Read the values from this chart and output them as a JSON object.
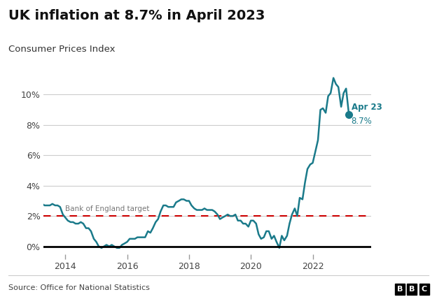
{
  "title": "UK inflation at 8.7% in April 2023",
  "subtitle": "Consumer Prices Index",
  "source": "Source: Office for National Statistics",
  "line_color": "#1a7a8a",
  "target_line_color": "#cc0000",
  "target_value": 2.0,
  "target_label": "Bank of England target",
  "background_color": "#ffffff",
  "ylabel_ticks": [
    "0%",
    "2%",
    "4%",
    "6%",
    "8%",
    "10%"
  ],
  "ytick_values": [
    0,
    2,
    4,
    6,
    8,
    10
  ],
  "ylim": [
    -0.5,
    12.0
  ],
  "xlim_start": 2013.3,
  "xlim_end": 2023.9,
  "data": [
    [
      2013.25,
      2.8
    ],
    [
      2013.33,
      2.7
    ],
    [
      2013.42,
      2.7
    ],
    [
      2013.5,
      2.7
    ],
    [
      2013.58,
      2.8
    ],
    [
      2013.67,
      2.7
    ],
    [
      2013.75,
      2.7
    ],
    [
      2013.83,
      2.6
    ],
    [
      2013.92,
      2.1
    ],
    [
      2014.0,
      1.9
    ],
    [
      2014.08,
      1.7
    ],
    [
      2014.17,
      1.6
    ],
    [
      2014.25,
      1.6
    ],
    [
      2014.33,
      1.5
    ],
    [
      2014.42,
      1.5
    ],
    [
      2014.5,
      1.6
    ],
    [
      2014.58,
      1.5
    ],
    [
      2014.67,
      1.2
    ],
    [
      2014.75,
      1.2
    ],
    [
      2014.83,
      1.0
    ],
    [
      2014.92,
      0.5
    ],
    [
      2015.0,
      0.3
    ],
    [
      2015.08,
      0.0
    ],
    [
      2015.17,
      -0.1
    ],
    [
      2015.25,
      0.0
    ],
    [
      2015.33,
      0.1
    ],
    [
      2015.42,
      0.0
    ],
    [
      2015.5,
      0.1
    ],
    [
      2015.58,
      0.0
    ],
    [
      2015.67,
      -0.1
    ],
    [
      2015.75,
      -0.1
    ],
    [
      2015.83,
      0.1
    ],
    [
      2015.92,
      0.2
    ],
    [
      2016.0,
      0.3
    ],
    [
      2016.08,
      0.5
    ],
    [
      2016.17,
      0.5
    ],
    [
      2016.25,
      0.5
    ],
    [
      2016.33,
      0.6
    ],
    [
      2016.42,
      0.6
    ],
    [
      2016.5,
      0.6
    ],
    [
      2016.58,
      0.6
    ],
    [
      2016.67,
      1.0
    ],
    [
      2016.75,
      0.9
    ],
    [
      2016.83,
      1.2
    ],
    [
      2016.92,
      1.6
    ],
    [
      2017.0,
      1.8
    ],
    [
      2017.08,
      2.3
    ],
    [
      2017.17,
      2.7
    ],
    [
      2017.25,
      2.7
    ],
    [
      2017.33,
      2.6
    ],
    [
      2017.42,
      2.6
    ],
    [
      2017.5,
      2.6
    ],
    [
      2017.58,
      2.9
    ],
    [
      2017.67,
      3.0
    ],
    [
      2017.75,
      3.1
    ],
    [
      2017.83,
      3.1
    ],
    [
      2017.92,
      3.0
    ],
    [
      2018.0,
      3.0
    ],
    [
      2018.08,
      2.7
    ],
    [
      2018.17,
      2.5
    ],
    [
      2018.25,
      2.4
    ],
    [
      2018.33,
      2.4
    ],
    [
      2018.42,
      2.4
    ],
    [
      2018.5,
      2.5
    ],
    [
      2018.58,
      2.4
    ],
    [
      2018.67,
      2.4
    ],
    [
      2018.75,
      2.4
    ],
    [
      2018.83,
      2.3
    ],
    [
      2018.92,
      2.1
    ],
    [
      2019.0,
      1.8
    ],
    [
      2019.08,
      1.9
    ],
    [
      2019.17,
      2.0
    ],
    [
      2019.25,
      2.1
    ],
    [
      2019.33,
      2.0
    ],
    [
      2019.42,
      2.0
    ],
    [
      2019.5,
      2.1
    ],
    [
      2019.58,
      1.7
    ],
    [
      2019.67,
      1.7
    ],
    [
      2019.75,
      1.5
    ],
    [
      2019.83,
      1.5
    ],
    [
      2019.92,
      1.3
    ],
    [
      2020.0,
      1.7
    ],
    [
      2020.08,
      1.7
    ],
    [
      2020.17,
      1.5
    ],
    [
      2020.25,
      0.8
    ],
    [
      2020.33,
      0.5
    ],
    [
      2020.42,
      0.6
    ],
    [
      2020.5,
      1.0
    ],
    [
      2020.58,
      1.0
    ],
    [
      2020.67,
      0.5
    ],
    [
      2020.75,
      0.7
    ],
    [
      2020.83,
      0.3
    ],
    [
      2020.92,
      -0.1
    ],
    [
      2021.0,
      0.7
    ],
    [
      2021.08,
      0.4
    ],
    [
      2021.17,
      0.7
    ],
    [
      2021.25,
      1.5
    ],
    [
      2021.33,
      2.1
    ],
    [
      2021.42,
      2.5
    ],
    [
      2021.5,
      2.0
    ],
    [
      2021.58,
      3.2
    ],
    [
      2021.67,
      3.1
    ],
    [
      2021.75,
      4.2
    ],
    [
      2021.83,
      5.1
    ],
    [
      2021.92,
      5.4
    ],
    [
      2022.0,
      5.5
    ],
    [
      2022.08,
      6.2
    ],
    [
      2022.17,
      7.0
    ],
    [
      2022.25,
      9.0
    ],
    [
      2022.33,
      9.1
    ],
    [
      2022.42,
      8.8
    ],
    [
      2022.5,
      9.9
    ],
    [
      2022.58,
      10.1
    ],
    [
      2022.67,
      11.1
    ],
    [
      2022.75,
      10.7
    ],
    [
      2022.83,
      10.5
    ],
    [
      2022.92,
      9.2
    ],
    [
      2023.0,
      10.1
    ],
    [
      2023.08,
      10.4
    ],
    [
      2023.17,
      8.7
    ]
  ],
  "xtick_years": [
    2014,
    2016,
    2018,
    2020,
    2022
  ],
  "bbc_logo_text": "BBC"
}
